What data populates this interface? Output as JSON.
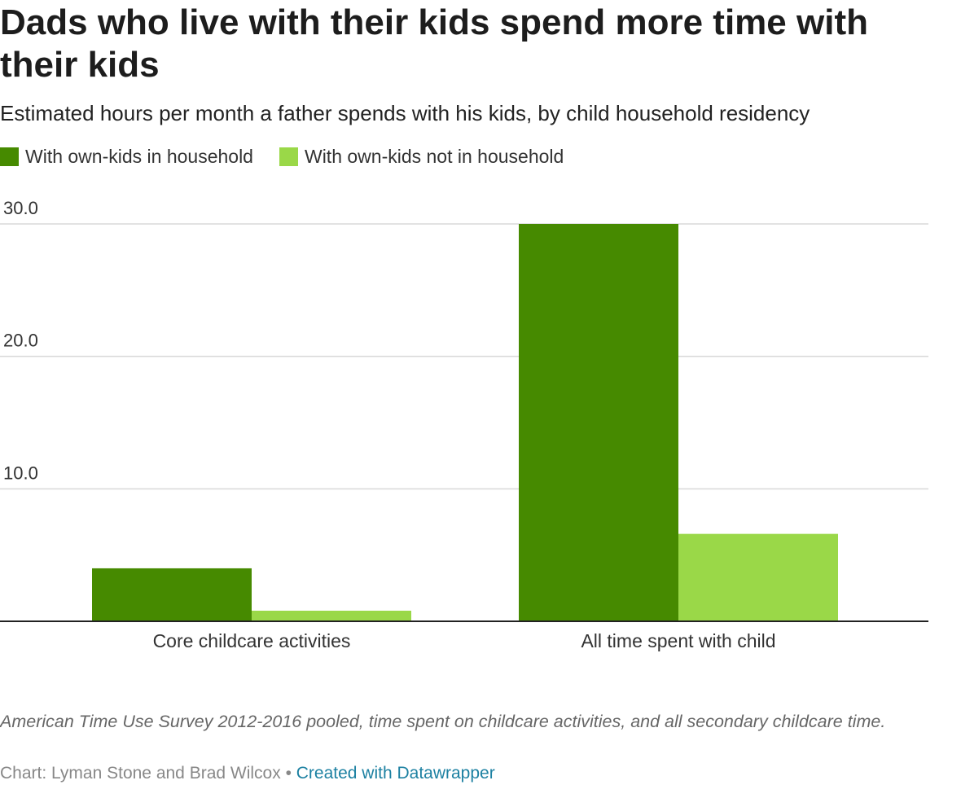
{
  "header": {
    "title": "Dads who live with their kids spend more time with their kids",
    "subtitle": "Estimated hours per month a father spends with his kids, by child household residency"
  },
  "legend": [
    {
      "label": "With own-kids in household",
      "color": "#468a00"
    },
    {
      "label": "With own-kids not in household",
      "color": "#9ad848"
    }
  ],
  "chart_data": {
    "type": "bar",
    "title": "Dads who live with their kids spend more time with their kids",
    "subtitle": "Estimated hours per month a father spends with his kids, by child household residency",
    "categories": [
      "Core childcare activities",
      "All time spent with child"
    ],
    "series": [
      {
        "name": "With own-kids in household",
        "values": [
          4.0,
          30.0
        ],
        "color": "#468a00"
      },
      {
        "name": "With own-kids not in household",
        "values": [
          0.8,
          6.6
        ],
        "color": "#9ad848"
      }
    ],
    "yticks": [
      10,
      20,
      30
    ],
    "ytick_labels": [
      "10.0",
      "20.0",
      "30.0"
    ],
    "ylim": [
      0,
      30
    ],
    "grid": true,
    "xlabel": "",
    "ylabel": ""
  },
  "footer": {
    "note": "American Time Use Survey 2012-2016 pooled, time spent on childcare activities, and all secondary childcare time.",
    "source": "Chart: Lyman Stone and Brad Wilcox",
    "separator": "•",
    "credit": "Created with Datawrapper"
  }
}
